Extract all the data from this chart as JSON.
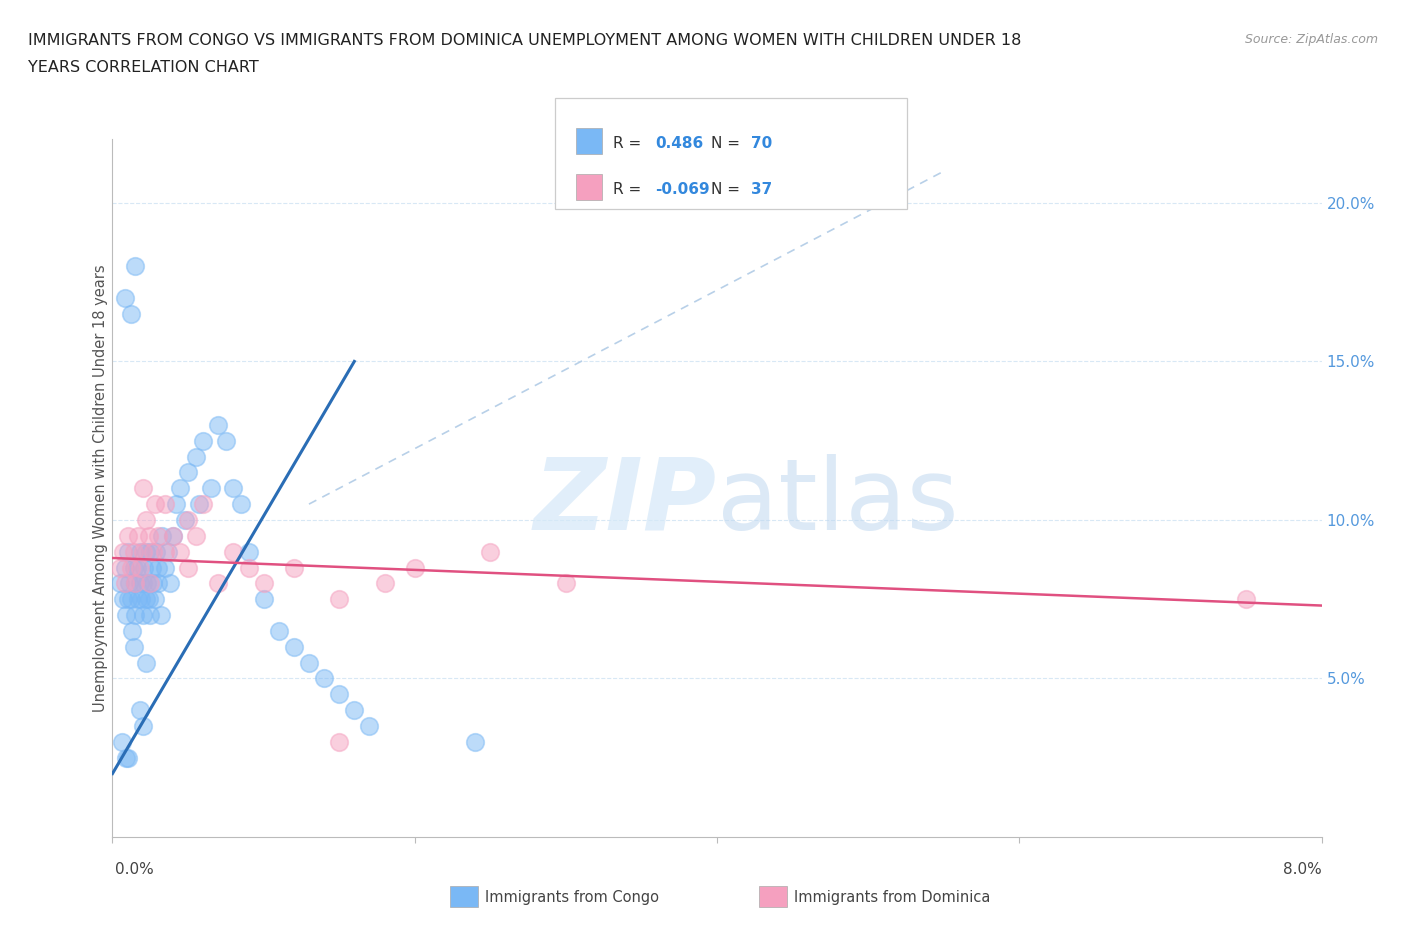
{
  "title_line1": "IMMIGRANTS FROM CONGO VS IMMIGRANTS FROM DOMINICA UNEMPLOYMENT AMONG WOMEN WITH CHILDREN UNDER 18",
  "title_line2": "YEARS CORRELATION CHART",
  "source": "Source: ZipAtlas.com",
  "ylabel": "Unemployment Among Women with Children Under 18 years",
  "legend1_label": "Immigrants from Congo",
  "legend2_label": "Immigrants from Dominica",
  "R_congo": 0.486,
  "N_congo": 70,
  "R_dominica": -0.069,
  "N_dominica": 37,
  "congo_color": "#7ab8f5",
  "dominica_color": "#f5a0bf",
  "congo_line_color": "#2a6db5",
  "dominica_line_color": "#e05080",
  "ref_line_color": "#b8d0e8",
  "grid_color": "#d8e8f5",
  "xlim": [
    0.0,
    8.0
  ],
  "ylim": [
    0.0,
    22.0
  ],
  "ytick_vals": [
    5.0,
    10.0,
    15.0,
    20.0
  ],
  "congo_trend_x": [
    0.0,
    1.6
  ],
  "congo_trend_y": [
    2.0,
    15.0
  ],
  "dom_trend_x": [
    0.0,
    8.0
  ],
  "dom_trend_y": [
    8.8,
    7.3
  ],
  "ref_line_x": [
    1.3,
    5.5
  ],
  "ref_line_y": [
    10.5,
    21.0
  ],
  "watermark_zip": "ZIP",
  "watermark_atlas": "atlas",
  "congo_scatter_x": [
    0.05,
    0.07,
    0.08,
    0.09,
    0.1,
    0.1,
    0.11,
    0.12,
    0.13,
    0.14,
    0.15,
    0.15,
    0.16,
    0.17,
    0.18,
    0.18,
    0.19,
    0.2,
    0.2,
    0.21,
    0.22,
    0.22,
    0.23,
    0.24,
    0.25,
    0.25,
    0.26,
    0.27,
    0.28,
    0.29,
    0.3,
    0.3,
    0.32,
    0.33,
    0.35,
    0.37,
    0.38,
    0.4,
    0.42,
    0.45,
    0.48,
    0.5,
    0.55,
    0.57,
    0.6,
    0.65,
    0.7,
    0.75,
    0.8,
    0.85,
    0.9,
    1.0,
    1.1,
    1.2,
    1.3,
    1.4,
    1.5,
    1.6,
    1.7,
    2.4,
    0.12,
    0.08,
    0.15,
    0.1,
    0.2,
    0.18,
    0.06,
    0.09,
    0.14,
    0.22
  ],
  "congo_scatter_y": [
    8.0,
    7.5,
    8.5,
    7.0,
    7.5,
    9.0,
    8.0,
    7.5,
    6.5,
    8.5,
    8.0,
    7.0,
    8.5,
    7.5,
    9.0,
    8.0,
    7.5,
    8.0,
    7.0,
    8.5,
    9.0,
    7.5,
    8.0,
    7.5,
    9.0,
    7.0,
    8.5,
    8.0,
    7.5,
    9.0,
    8.5,
    8.0,
    7.0,
    9.5,
    8.5,
    9.0,
    8.0,
    9.5,
    10.5,
    11.0,
    10.0,
    11.5,
    12.0,
    10.5,
    12.5,
    11.0,
    13.0,
    12.5,
    11.0,
    10.5,
    9.0,
    7.5,
    6.5,
    6.0,
    5.5,
    5.0,
    4.5,
    4.0,
    3.5,
    3.0,
    16.5,
    17.0,
    18.0,
    2.5,
    3.5,
    4.0,
    3.0,
    2.5,
    6.0,
    5.5
  ],
  "dom_scatter_x": [
    0.05,
    0.07,
    0.08,
    0.1,
    0.12,
    0.14,
    0.15,
    0.17,
    0.18,
    0.2,
    0.22,
    0.24,
    0.25,
    0.27,
    0.28,
    0.3,
    0.35,
    0.4,
    0.45,
    0.5,
    0.55,
    0.6,
    0.8,
    1.0,
    1.2,
    1.5,
    1.8,
    2.0,
    2.5,
    3.0,
    0.2,
    0.35,
    0.5,
    0.7,
    0.9,
    1.5,
    7.5
  ],
  "dom_scatter_y": [
    8.5,
    9.0,
    8.0,
    9.5,
    8.5,
    9.0,
    8.0,
    9.5,
    8.5,
    9.0,
    10.0,
    9.5,
    8.0,
    9.0,
    10.5,
    9.5,
    9.0,
    9.5,
    9.0,
    10.0,
    9.5,
    10.5,
    9.0,
    8.0,
    8.5,
    7.5,
    8.0,
    8.5,
    9.0,
    8.0,
    11.0,
    10.5,
    8.5,
    8.0,
    8.5,
    3.0,
    7.5
  ]
}
